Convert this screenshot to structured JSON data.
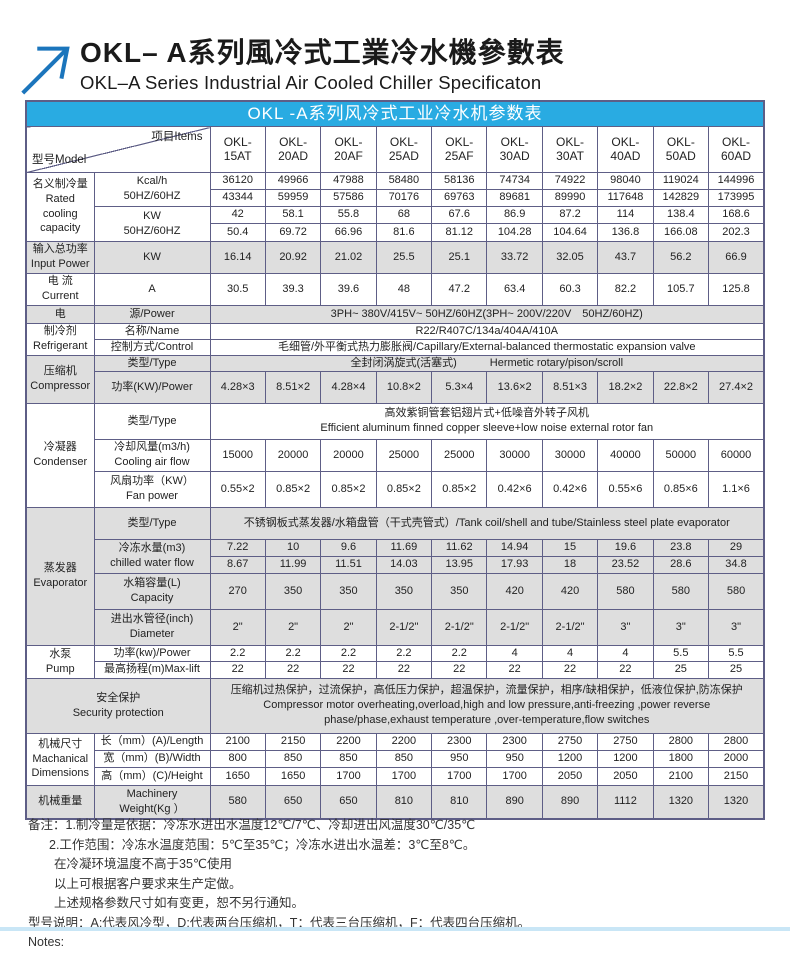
{
  "page": {
    "title_zh": "OKL– A系列風冷式工業冷水機參數表",
    "title_en": "OKL–A Series Industrial Air Cooled Chiller Specificaton"
  },
  "colors": {
    "caption_blue": "#29abe2",
    "arrow_blue": "#1b75bc",
    "row_gray": "#dedede",
    "border": "#5e5e86",
    "bottom_strip": "#c9e6f6"
  },
  "table": {
    "caption": "OKL -A系列风冷式工业冷水机参数表",
    "corner": {
      "model": "型号Model",
      "items": "项目Items"
    },
    "models": [
      {
        "l1": "OKL-",
        "l2": "15AT"
      },
      {
        "l1": "OKL-",
        "l2": "20AD"
      },
      {
        "l1": "OKL-",
        "l2": "20AF"
      },
      {
        "l1": "OKL-",
        "l2": "25AD"
      },
      {
        "l1": "OKL-",
        "l2": "25AF"
      },
      {
        "l1": "OKL-",
        "l2": "30AD"
      },
      {
        "l1": "OKL-",
        "l2": "30AT"
      },
      {
        "l1": "OKL-",
        "l2": "40AD"
      },
      {
        "l1": "OKL-",
        "l2": "50AD"
      },
      {
        "l1": "OKL-",
        "l2": "60AD"
      }
    ],
    "rated": {
      "group": "名义制冷量\nRated\ncooling\ncapacity",
      "item_kcal": "Kcal/h\n50HZ/60HZ",
      "item_kw": "KW\n50HZ/60HZ",
      "kcal_50": [
        "36120",
        "49966",
        "47988",
        "58480",
        "58136",
        "74734",
        "74922",
        "98040",
        "119024",
        "144996"
      ],
      "kcal_60": [
        "43344",
        "59959",
        "57586",
        "70176",
        "69763",
        "89681",
        "89990",
        "117648",
        "142829",
        "173995"
      ],
      "kw_50": [
        "42",
        "58.1",
        "55.8",
        "68",
        "67.6",
        "86.9",
        "87.2",
        "114",
        "138.4",
        "168.6"
      ],
      "kw_60": [
        "50.4",
        "69.72",
        "66.96",
        "81.6",
        "81.12",
        "104.28",
        "104.64",
        "136.8",
        "166.08",
        "202.3"
      ]
    },
    "input_power": {
      "label": "输入总功率\nInput Power",
      "item": "KW",
      "values": [
        "16.14",
        "20.92",
        "21.02",
        "25.5",
        "25.1",
        "33.72",
        "32.05",
        "43.7",
        "56.2",
        "66.9"
      ]
    },
    "current": {
      "label": "电 流\nCurrent",
      "item": "A",
      "values": [
        "30.5",
        "39.3",
        "39.6",
        "48",
        "47.2",
        "63.4",
        "60.3",
        "82.2",
        "105.7",
        "125.8"
      ]
    },
    "power_supply": {
      "label_col1": "电",
      "label_col2": "源/Power",
      "value": "3PH~ 380V/415V~ 50HZ/60HZ(3PH~ 200V/220V　50HZ/60HZ)"
    },
    "refrigerant": {
      "group": "制冷剂\nRefrigerant",
      "name_item": "名称/Name",
      "name_value": "R22/R407C/134a/404A/410A",
      "control_item": "控制方式/Control",
      "control_value": "毛细管/外平衡式热力膨胀阀/Capillary/External-balanced thermostatic expansion valve"
    },
    "compressor": {
      "group": "压缩机\nCompressor",
      "type_item": "类型/Type",
      "type_value": "全封闭涡旋式(活塞式)　　　Hermetic rotary/pison/scroll",
      "power_item": "功率(KW)/Power",
      "power_values": [
        "4.28×3",
        "8.51×2",
        "4.28×4",
        "10.8×2",
        "5.3×4",
        "13.6×2",
        "8.51×3",
        "18.2×2",
        "22.8×2",
        "27.4×2"
      ]
    },
    "condenser": {
      "group": "冷凝器\nCondenser",
      "type_item": "类型/Type",
      "type_value": "高效紫铜管套铝翅片式+低噪音外转子风机\nEfficient aluminum finned copper sleeve+low noise external rotor fan",
      "airflow_item": "冷却风量(m3/h)\nCooling air flow",
      "airflow_values": [
        "15000",
        "20000",
        "20000",
        "25000",
        "25000",
        "30000",
        "30000",
        "40000",
        "50000",
        "60000"
      ],
      "fan_item": "风扇功率（KW）\nFan power",
      "fan_values": [
        "0.55×2",
        "0.85×2",
        "0.85×2",
        "0.85×2",
        "0.85×2",
        "0.42×6",
        "0.42×6",
        "0.55×6",
        "0.85×6",
        "1.1×6"
      ]
    },
    "evaporator": {
      "group": "蒸发器\nEvaporator",
      "type_item": "类型/Type",
      "type_value": "不锈钢板式蒸发器/水箱盘管（干式壳管式）/Tank coil/shell and tube/Stainless steel plate evaporator",
      "flow_item": "冷冻水量(m3)\nchilled water flow",
      "flow_50": [
        "7.22",
        "10",
        "9.6",
        "11.69",
        "11.62",
        "14.94",
        "15",
        "19.6",
        "23.8",
        "29"
      ],
      "flow_60": [
        "8.67",
        "11.99",
        "11.51",
        "14.03",
        "13.95",
        "17.93",
        "18",
        "23.52",
        "28.6",
        "34.8"
      ],
      "capacity_item": "水箱容量(L)\nCapacity",
      "capacity_values": [
        "270",
        "350",
        "350",
        "350",
        "350",
        "420",
        "420",
        "580",
        "580",
        "580"
      ],
      "diameter_item": "进出水管径(inch)\nDiameter",
      "diameter_values": [
        "2\"",
        "2\"",
        "2\"",
        "2-1/2\"",
        "2-1/2\"",
        "2-1/2\"",
        "2-1/2\"",
        "3\"",
        "3\"",
        "3\""
      ]
    },
    "pump": {
      "group": "水泵\nPump",
      "power_item": "功率(kw)/Power",
      "power_values": [
        "2.2",
        "2.2",
        "2.2",
        "2.2",
        "2.2",
        "4",
        "4",
        "4",
        "5.5",
        "5.5"
      ],
      "lift_item": "最高扬程(m)Max-lift",
      "lift_values": [
        "22",
        "22",
        "22",
        "22",
        "22",
        "22",
        "22",
        "22",
        "25",
        "25"
      ]
    },
    "security": {
      "label": "安全保护\nSecurity protection",
      "value": "压缩机过热保护，过流保护，高低压力保护，超温保护，流量保护，相序/缺相保护，低液位保护,防冻保护\nCompressor motor overheating,overload,high and low pressure,anti-freezing ,power reverse\nphase/phase,exhaust temperature ,over-temperature,flow switches"
    },
    "dimensions": {
      "group": "机械尺寸\nMachanical\nDimensions",
      "length_item": "长（mm）(A)/Length",
      "length_values": [
        "2100",
        "2150",
        "2200",
        "2200",
        "2300",
        "2300",
        "2750",
        "2750",
        "2800",
        "2800"
      ],
      "width_item": "宽（mm）(B)/Width",
      "width_values": [
        "800",
        "850",
        "850",
        "850",
        "950",
        "950",
        "1200",
        "1200",
        "1800",
        "2000"
      ],
      "height_item": "高（mm）(C)/Height",
      "height_values": [
        "1650",
        "1650",
        "1700",
        "1700",
        "1700",
        "1700",
        "2050",
        "2050",
        "2100",
        "2150"
      ]
    },
    "weight": {
      "label": "机械重量",
      "item": "Machinery\nWeight(Kg ）",
      "values": [
        "580",
        "650",
        "650",
        "810",
        "810",
        "890",
        "890",
        "1112",
        "1320",
        "1320"
      ]
    }
  },
  "notes": [
    "备注：1.制冷量是依据：冷冻水进出水温度12℃/7℃、冷却进出风温度30℃/35℃",
    "2.工作范围：冷冻水温度范围：5℃至35℃；冷冻水进出水温差：3℃至8℃。",
    "在冷凝环境温度不高于35℃使用",
    "以上可根据客户要求来生产定做。",
    "上述规格参数尺寸如有变更，恕不另行通知。",
    "型号说明：A:代表风冷型，D:代表两台压缩机，T：代表三台压缩机，F：代表四台压缩机。",
    "Notes:"
  ]
}
